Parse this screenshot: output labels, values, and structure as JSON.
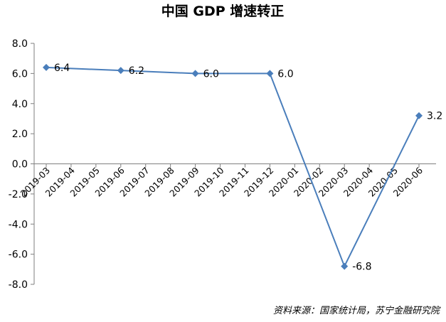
{
  "chart_data": {
    "type": "line",
    "title": "中国 GDP 增速转正",
    "categories": [
      "2019-03",
      "2019-04",
      "2019-05",
      "2019-06",
      "2019-07",
      "2019-08",
      "2019-09",
      "2019-10",
      "2019-11",
      "2019-12",
      "2020-01",
      "2020-02",
      "2020-03",
      "2020-04",
      "2020-05",
      "2020-06"
    ],
    "series": [
      {
        "values": [
          6.4,
          null,
          null,
          6.2,
          null,
          null,
          6.0,
          null,
          null,
          6.0,
          null,
          null,
          -6.8,
          null,
          null,
          3.2
        ],
        "labels": [
          "6.4",
          null,
          null,
          "6.2",
          null,
          null,
          "6.0",
          null,
          null,
          "6.0",
          null,
          null,
          "-6.8",
          null,
          null,
          "3.2"
        ],
        "color": "#4a7ebb",
        "marker": "diamond"
      }
    ],
    "y_ticks": [
      "8.0",
      "6.0",
      "4.0",
      "2.0",
      "0.0",
      "-2.0",
      "-4.0",
      "-6.0",
      "-8.0"
    ],
    "ylim": [
      -8,
      8
    ],
    "grid": false,
    "source": "资料来源：国家统计局，苏宁金融研究院"
  }
}
